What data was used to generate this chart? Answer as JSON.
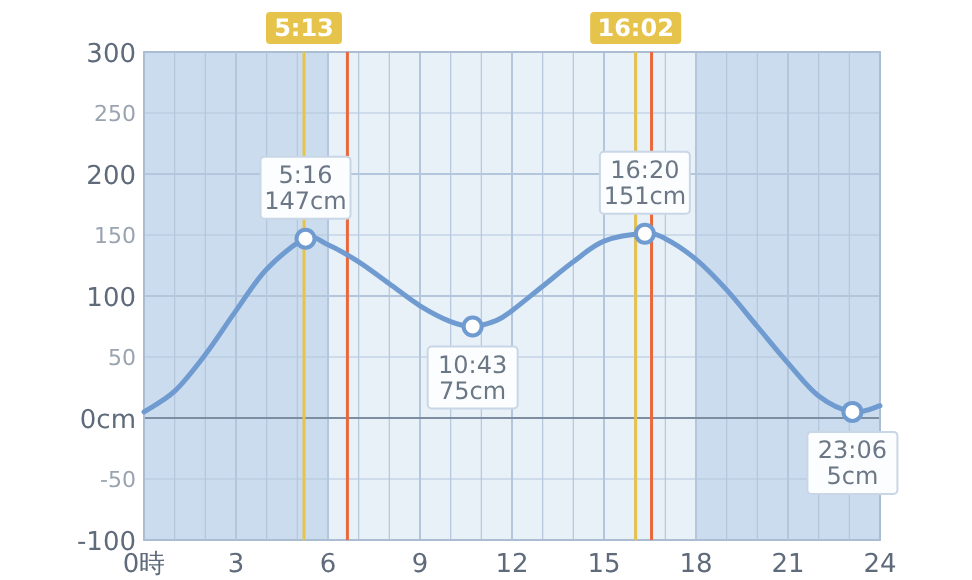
{
  "chart_data": {
    "type": "line",
    "x": [
      0,
      1,
      2,
      3,
      4,
      5.267,
      6,
      7,
      8,
      9,
      10,
      10.717,
      11.5,
      12,
      13,
      14,
      15,
      16.333,
      17,
      18,
      19,
      20,
      21,
      22,
      23.1,
      24
    ],
    "series": [
      {
        "color": "#6f9bd1",
        "marker": "none",
        "values": [
          5,
          22,
          52,
          88,
          122,
          147,
          142,
          128,
          110,
          92,
          79,
          75,
          80,
          88,
          108,
          128,
          145,
          151,
          147,
          130,
          105,
          75,
          45,
          18,
          5,
          10
        ]
      },
      {
        "type": "scatter",
        "color": "#6f9bd1",
        "marker": "circle",
        "x": [
          5.267,
          10.717,
          16.333,
          23.1
        ],
        "values": [
          147,
          75,
          151,
          5
        ],
        "value_labels": [
          "5:16\n147cm",
          "10:43\n75cm",
          "16:20\n151cm",
          "23:06\n5cm"
        ]
      }
    ],
    "xlim": [
      0,
      24
    ],
    "xticks": [
      {
        "value": 0,
        "label": "0時"
      },
      3,
      6,
      9,
      12,
      15,
      18,
      21,
      24
    ],
    "ylim": [
      -100,
      300
    ],
    "yticks": [
      -100,
      -50,
      {
        "value": 0,
        "label": "0cm"
      },
      50,
      100,
      150,
      200,
      250,
      300
    ],
    "grid": true,
    "bands": [
      {
        "axis": "x",
        "from": 0,
        "to": 6,
        "label": null,
        "color": "#cbdcee"
      },
      {
        "axis": "x",
        "from": 18,
        "to": 24,
        "label": null,
        "color": "#cbdcee"
      }
    ],
    "ref_lines": [
      {
        "axis": "x",
        "value": 5.217,
        "label": "5:13",
        "color": "#e6c34a"
      },
      {
        "axis": "x",
        "value": 6.633,
        "label": null,
        "color": "#e8693c"
      },
      {
        "axis": "x",
        "value": 16.033,
        "label": "16:02",
        "color": "#e6c34a"
      },
      {
        "axis": "x",
        "value": 16.55,
        "label": null,
        "color": "#e8693c"
      }
    ]
  }
}
